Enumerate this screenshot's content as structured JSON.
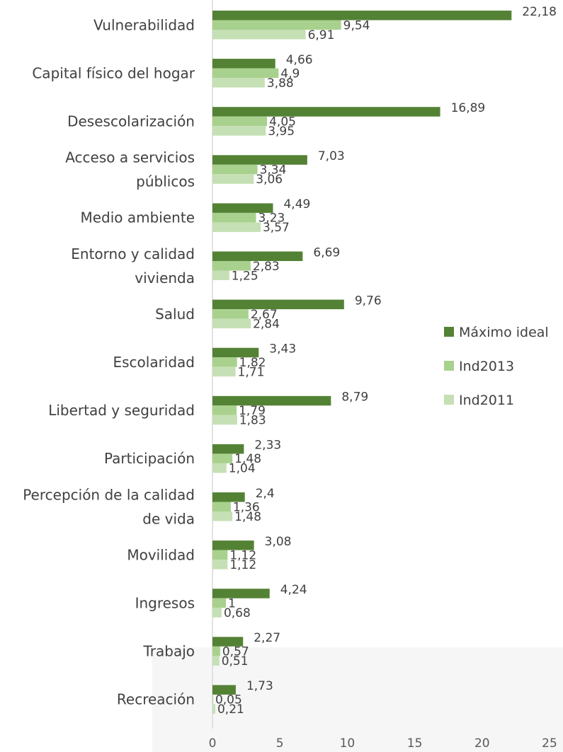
{
  "chart_data": {
    "type": "bar",
    "orientation": "horizontal",
    "categories": [
      [
        "Vulnerabilidad"
      ],
      [
        "Capital físico del hogar"
      ],
      [
        "Desescolarización"
      ],
      [
        "Acceso a servicios",
        "públicos"
      ],
      [
        "Medio ambiente"
      ],
      [
        "Entorno y calidad",
        "vivienda"
      ],
      [
        "Salud"
      ],
      [
        "Escolaridad"
      ],
      [
        "Libertad y seguridad"
      ],
      [
        "Participación"
      ],
      [
        "Percepción de la calidad",
        "de vida"
      ],
      [
        "Movilidad"
      ],
      [
        "Ingresos"
      ],
      [
        "Trabajo"
      ],
      [
        "Recreación"
      ]
    ],
    "series": [
      {
        "name": "Máximo ideal",
        "color": "#548235",
        "values": [
          22.18,
          4.66,
          16.89,
          7.03,
          4.49,
          6.69,
          9.76,
          3.43,
          8.79,
          2.33,
          2.4,
          3.08,
          4.24,
          2.27,
          1.73
        ],
        "labels": [
          "22,18",
          "4,66",
          "16,89",
          "7,03",
          "4,49",
          "6,69",
          "9,76",
          "3,43",
          "8,79",
          "2,33",
          "2,4",
          "3,08",
          "4,24",
          "2,27",
          "1,73"
        ]
      },
      {
        "name": "Ind2013",
        "color": "#a9d18e",
        "values": [
          9.54,
          4.9,
          4.05,
          3.34,
          3.23,
          2.83,
          2.67,
          1.82,
          1.79,
          1.48,
          1.36,
          1.12,
          1,
          0.57,
          0.05
        ],
        "labels": [
          "9,54",
          "4,9",
          "4,05",
          "3,34",
          "3,23",
          "2,83",
          "2,67",
          "1,82",
          "1,79",
          "1,48",
          "1,36",
          "1,12",
          "1",
          "0,57",
          "0,05"
        ]
      },
      {
        "name": "Ind2011",
        "color": "#c5e0b4",
        "values": [
          6.91,
          3.88,
          3.95,
          3.06,
          3.57,
          1.25,
          2.84,
          1.71,
          1.83,
          1.04,
          1.48,
          1.12,
          0.68,
          0.51,
          0.21
        ],
        "labels": [
          "6,91",
          "3,88",
          "3,95",
          "3,06",
          "3,57",
          "1,25",
          "2,84",
          "1,71",
          "1,83",
          "1,04",
          "1,48",
          "1,12",
          "0,68",
          "0,51",
          "0,21"
        ]
      }
    ],
    "xlim": [
      0,
      25
    ],
    "xticks": [
      "0",
      "5",
      "10",
      "15",
      "20",
      "25"
    ],
    "title": "",
    "xlabel": "",
    "ylabel": "",
    "legend_position": "right",
    "grid": false
  }
}
